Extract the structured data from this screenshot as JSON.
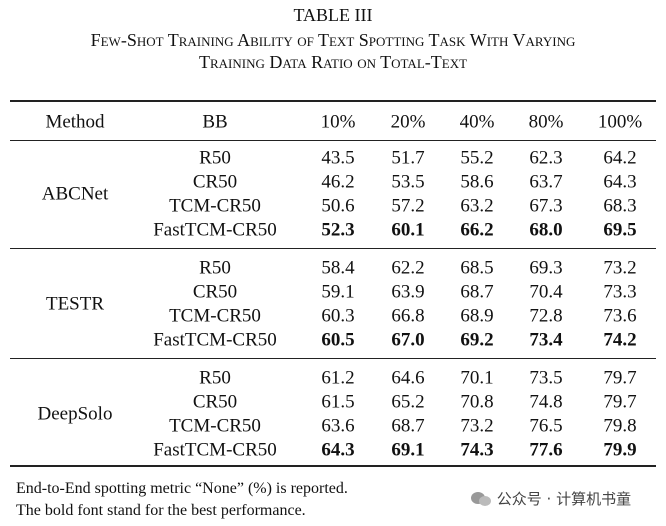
{
  "caption": {
    "label": "TABLE III",
    "lines": [
      "Few-Shot Training Ability of Text Spotting Task With Varying",
      "Training Data Ratio on Total-Text"
    ]
  },
  "table": {
    "header": [
      "Method",
      "BB",
      "10%",
      "20%",
      "40%",
      "80%",
      "100%"
    ],
    "groups": [
      {
        "method": "ABCNet",
        "rows": [
          {
            "backbone": "R50",
            "values": [
              "43.5",
              "51.7",
              "55.2",
              "62.3",
              "64.2"
            ]
          },
          {
            "backbone": "CR50",
            "values": [
              "46.2",
              "53.5",
              "58.6",
              "63.7",
              "64.3"
            ]
          },
          {
            "backbone": "TCM-CR50",
            "values": [
              "50.6",
              "57.2",
              "63.2",
              "67.3",
              "68.3"
            ]
          },
          {
            "backbone": "FastTCM-CR50",
            "values": [
              "52.3",
              "60.1",
              "66.2",
              "68.0",
              "69.5"
            ],
            "bold": true
          }
        ]
      },
      {
        "method": "TESTR",
        "rows": [
          {
            "backbone": "R50",
            "values": [
              "58.4",
              "62.2",
              "68.5",
              "69.3",
              "73.2"
            ]
          },
          {
            "backbone": "CR50",
            "values": [
              "59.1",
              "63.9",
              "68.7",
              "70.4",
              "73.3"
            ]
          },
          {
            "backbone": "TCM-CR50",
            "values": [
              "60.3",
              "66.8",
              "68.9",
              "72.8",
              "73.6"
            ]
          },
          {
            "backbone": "FastTCM-CR50",
            "values": [
              "60.5",
              "67.0",
              "69.2",
              "73.4",
              "74.2"
            ],
            "bold": true
          }
        ]
      },
      {
        "method": "DeepSolo",
        "rows": [
          {
            "backbone": "R50",
            "values": [
              "61.2",
              "64.6",
              "70.1",
              "73.5",
              "79.7"
            ]
          },
          {
            "backbone": "CR50",
            "values": [
              "61.5",
              "65.2",
              "70.8",
              "74.8",
              "79.7"
            ]
          },
          {
            "backbone": "TCM-CR50",
            "values": [
              "63.6",
              "68.7",
              "73.2",
              "76.5",
              "79.8"
            ]
          },
          {
            "backbone": "FastTCM-CR50",
            "values": [
              "64.3",
              "69.1",
              "74.3",
              "77.6",
              "79.9"
            ],
            "bold": true
          }
        ]
      }
    ]
  },
  "notes": [
    "End-to-End spotting metric “None” (%) is reported.",
    "The bold font stand for the best performance."
  ],
  "watermark": "公众号 · 计算机书童"
}
